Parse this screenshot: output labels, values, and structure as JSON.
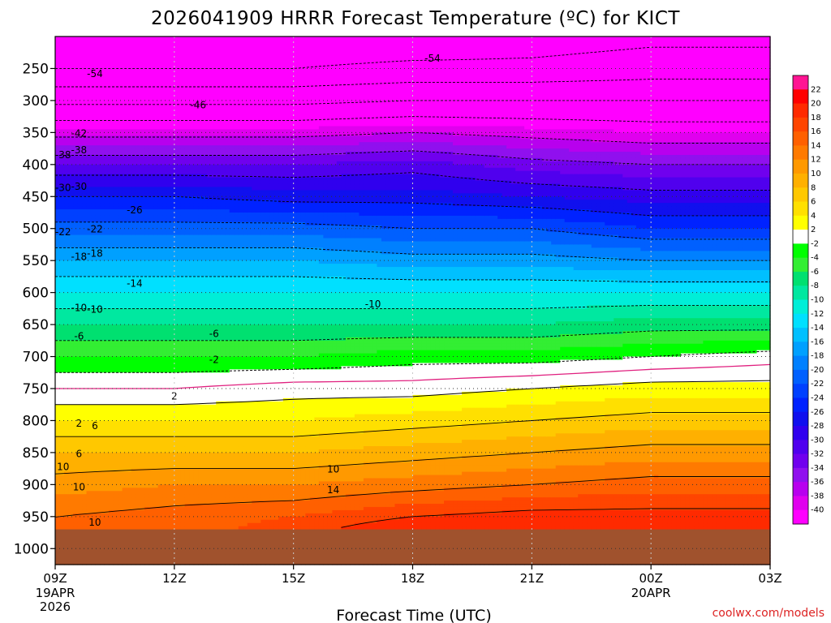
{
  "chart_data": {
    "type": "heatmap",
    "title": "2026041909 HRRR Forecast Temperature (ºC) for KICT",
    "xlabel": "Forecast Time (UTC)",
    "ylabel": "",
    "credit": "coolwx.com/models",
    "x_hours": [
      0,
      3,
      6,
      9,
      12,
      15,
      18
    ],
    "x_ticks": [
      {
        "label": "09Z",
        "sub": [
          "19APR",
          "2026"
        ]
      },
      {
        "label": "12Z",
        "sub": []
      },
      {
        "label": "15Z",
        "sub": []
      },
      {
        "label": "18Z",
        "sub": []
      },
      {
        "label": "21Z",
        "sub": []
      },
      {
        "label": "00Z",
        "sub": [
          "20APR"
        ]
      },
      {
        "label": "03Z",
        "sub": []
      }
    ],
    "y_ticks": [
      250,
      300,
      350,
      400,
      450,
      500,
      550,
      600,
      650,
      700,
      750,
      800,
      850,
      900,
      950,
      1000
    ],
    "ylim": [
      200,
      1025
    ],
    "surface_pressure": 970,
    "colorbar_labels": [
      22,
      20,
      18,
      16,
      14,
      12,
      10,
      8,
      6,
      4,
      2,
      -2,
      -4,
      -6,
      -8,
      -10,
      -12,
      -14,
      -16,
      -18,
      -20,
      -22,
      -24,
      -26,
      -28,
      -30,
      -32,
      -34,
      -36,
      -38,
      -40
    ],
    "colorbar_colors": [
      "#ff1493",
      "#ff0000",
      "#ff2a00",
      "#ff4500",
      "#ff6000",
      "#ff7a00",
      "#ff9900",
      "#ffb000",
      "#ffc800",
      "#ffe000",
      "#ffff00",
      "#ffffff",
      "#00ff00",
      "#33ee33",
      "#00e070",
      "#00e8a0",
      "#00eed8",
      "#00e0ff",
      "#00c0ff",
      "#00a0ff",
      "#0080ff",
      "#0060ff",
      "#0040ff",
      "#0022ff",
      "#1010ee",
      "#3000ee",
      "#5000ee",
      "#7000ee",
      "#9010ee",
      "#b800ee",
      "#e000ee",
      "#ff00ff"
    ],
    "temperature_profiles": [
      {
        "hour": 0,
        "pressures": [
          200,
          250,
          300,
          350,
          400,
          450,
          500,
          550,
          600,
          650,
          700,
          750,
          800,
          850,
          900,
          950,
          970
        ],
        "temps": [
          -56,
          -54,
          -47,
          -39,
          -32,
          -26,
          -21,
          -16,
          -12,
          -8,
          -4,
          0,
          4,
          8,
          11,
          14,
          14
        ]
      },
      {
        "hour": 3,
        "pressures": [
          200,
          250,
          300,
          350,
          400,
          450,
          500,
          550,
          600,
          650,
          700,
          750,
          800,
          850,
          900,
          950,
          970
        ],
        "temps": [
          -57,
          -54,
          -47,
          -39,
          -32,
          -26,
          -21,
          -16,
          -12,
          -8,
          -4,
          0,
          4,
          8,
          12,
          15,
          15
        ]
      },
      {
        "hour": 6,
        "pressures": [
          200,
          250,
          300,
          350,
          400,
          450,
          500,
          550,
          600,
          650,
          700,
          750,
          800,
          850,
          900,
          950,
          970
        ],
        "temps": [
          -57,
          -54,
          -47,
          -39,
          -32,
          -27,
          -21,
          -16,
          -12,
          -8,
          -4,
          1,
          4,
          8,
          12,
          16,
          17
        ]
      },
      {
        "hour": 9,
        "pressures": [
          200,
          250,
          300,
          350,
          400,
          450,
          500,
          550,
          600,
          650,
          700,
          750,
          800,
          850,
          900,
          950,
          970
        ],
        "temps": [
          -57,
          -53,
          -46,
          -38,
          -31,
          -27,
          -22,
          -17,
          -12,
          -8,
          -3,
          1,
          5,
          9,
          13,
          18,
          20
        ]
      },
      {
        "hour": 12,
        "pressures": [
          200,
          250,
          300,
          350,
          400,
          450,
          500,
          550,
          600,
          650,
          700,
          750,
          800,
          850,
          900,
          950,
          970
        ],
        "temps": [
          -56,
          -53,
          -46,
          -39,
          -33,
          -28,
          -22,
          -17,
          -12,
          -8,
          -3,
          2,
          6,
          10,
          14,
          19,
          20
        ]
      },
      {
        "hour": 15,
        "pressures": [
          200,
          250,
          300,
          350,
          400,
          450,
          500,
          550,
          600,
          650,
          700,
          750,
          800,
          850,
          900,
          950,
          970
        ],
        "temps": [
          -55,
          -52,
          -46,
          -40,
          -34,
          -29,
          -24,
          -18,
          -12,
          -7,
          -2,
          3,
          7,
          11,
          15,
          19,
          20
        ]
      },
      {
        "hour": 18,
        "pressures": [
          200,
          250,
          300,
          350,
          400,
          450,
          500,
          550,
          600,
          650,
          700,
          750,
          800,
          850,
          900,
          950,
          970
        ],
        "temps": [
          -55,
          -52,
          -46,
          -40,
          -34,
          -29,
          -24,
          -18,
          -12,
          -7,
          -1,
          3,
          7,
          11,
          15,
          19,
          19
        ]
      }
    ],
    "contour_labels": [
      {
        "text": "-54",
        "hour": 9.5,
        "p": 238
      },
      {
        "text": "-54",
        "hour": 1.0,
        "p": 262
      },
      {
        "text": "-46",
        "hour": 3.6,
        "p": 311
      },
      {
        "text": "-42",
        "hour": -2.0,
        "p": 355
      },
      {
        "text": "-38",
        "hour": -2.0,
        "p": 381
      },
      {
        "text": "-38",
        "hour": 0.0,
        "p": 389
      },
      {
        "text": "-30",
        "hour": -1.0,
        "p": 438
      },
      {
        "text": "-30",
        "hour": 0.0,
        "p": 440
      },
      {
        "text": "-26",
        "hour": 2.0,
        "p": 475
      },
      {
        "text": "-22",
        "hour": 1.0,
        "p": 505
      },
      {
        "text": "-22",
        "hour": 0.0,
        "p": 509
      },
      {
        "text": "-18",
        "hour": 1.0,
        "p": 543
      },
      {
        "text": "-18",
        "hour": -1.0,
        "p": 548
      },
      {
        "text": "-14",
        "hour": 2.0,
        "p": 590
      },
      {
        "text": "-10",
        "hour": 1.0,
        "p": 630
      },
      {
        "text": "-10",
        "hour": -1.0,
        "p": 628
      },
      {
        "text": "-10",
        "hour": 8.0,
        "p": 622
      },
      {
        "text": "-6",
        "hour": -1.0,
        "p": 672
      },
      {
        "text": "-6",
        "hour": 4.0,
        "p": 668
      },
      {
        "text": "-2",
        "hour": 4.0,
        "p": 709
      },
      {
        "text": "2",
        "hour": 3.0,
        "p": 766
      },
      {
        "text": "2",
        "hour": -3.0,
        "p": 808
      },
      {
        "text": "6",
        "hour": 1.0,
        "p": 812
      },
      {
        "text": "6",
        "hour": -3.0,
        "p": 856
      },
      {
        "text": "10",
        "hour": 0.0,
        "p": 876
      },
      {
        "text": "10",
        "hour": 7.0,
        "p": 880
      },
      {
        "text": "10",
        "hour": -2.0,
        "p": 908
      },
      {
        "text": "14",
        "hour": 7.0,
        "p": 912
      },
      {
        "text": "10",
        "hour": 1.0,
        "p": 963
      }
    ]
  }
}
